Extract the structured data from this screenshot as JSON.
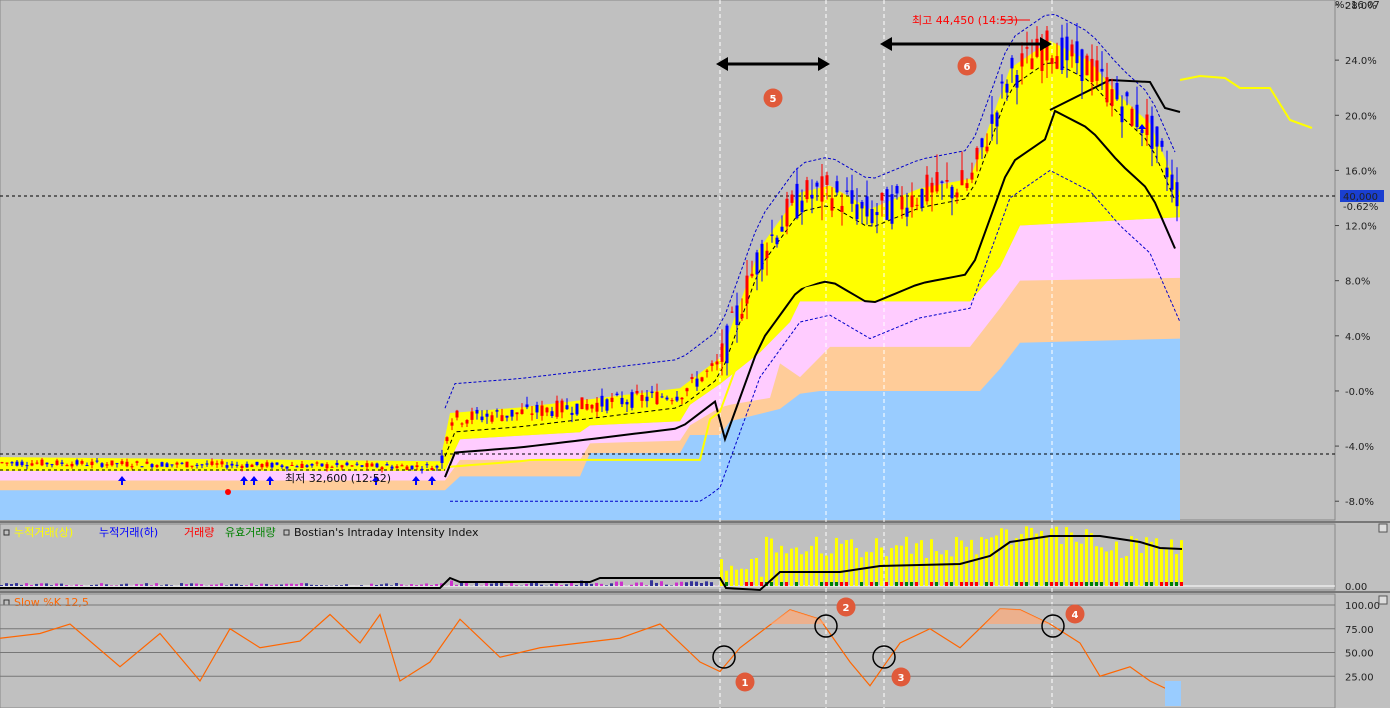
{
  "price_panel": {
    "y_axis_labels": [
      "28.0%",
      "24.0%",
      "20.0%",
      "16.0%",
      "12.0%",
      "8.0%",
      "4.0%",
      "-0.0%",
      "-4.0%",
      "-8.0%"
    ],
    "top_right_label": "%: 16.07",
    "current_price": "40,000",
    "current_change": "-0.62%",
    "high_label": "최고 44,450 (14:53)",
    "low_label": "최저 32,600 (12:52)"
  },
  "volume_panel": {
    "legend": [
      {
        "text": "누적거래(상)",
        "color": "#ffff00"
      },
      {
        "text": "누적거래(하)",
        "color": "#0000ff"
      },
      {
        "text": "거래량",
        "color": "#ff0000"
      },
      {
        "text": "유효거래량",
        "color": "#008000"
      },
      {
        "text": "Bostian's Intraday Intensity Index",
        "color": "#111111"
      }
    ],
    "y_axis_labels": [
      "0.00"
    ]
  },
  "stoch_panel": {
    "title": "Slow %K 12,5",
    "y_axis_labels": [
      "100.00",
      "75.00",
      "50.00",
      "25.00"
    ]
  },
  "annotations": [
    "1",
    "2",
    "3",
    "4",
    "5",
    "6"
  ],
  "colors": {
    "bg": "#c0c0c0",
    "band_yellow": "#ffff00",
    "band_pink": "#ffccff",
    "band_orange": "#ffcc99",
    "band_blue": "#99ccff",
    "candle_up": "#ff0000",
    "candle_down": "#0000ff",
    "stoch_line": "#ff6600",
    "badge": "#e05a3a"
  },
  "chart_data": [
    {
      "type": "line",
      "axis_unit": "%",
      "ylim": [
        -9.0,
        28.0
      ],
      "series": [
        {
          "values_x": [
            0,
            440,
            450,
            520,
            590,
            680,
            720,
            760,
            800,
            830,
            870,
            920,
            970,
            1010,
            1050,
            1090,
            1120,
            1150,
            1180
          ],
          "values": [
            -5.2,
            -5.5,
            -2.0,
            -1.6,
            -1.0,
            -0.2,
            2.0,
            10.0,
            14.0,
            14.5,
            12.8,
            14.3,
            15.0,
            23.0,
            25.0,
            23.5,
            21.0,
            19.0,
            14.0
          ]
        }
      ]
    },
    {
      "type": "line",
      "title": "Slow %K 12,5",
      "ylim": [
        0,
        100
      ],
      "series": [
        {
          "values_x": [
            0,
            40,
            70,
            120,
            160,
            200,
            230,
            260,
            300,
            330,
            360,
            380,
            400,
            430,
            460,
            500,
            540,
            580,
            620,
            660,
            700,
            720,
            740,
            790,
            820,
            850,
            870,
            900,
            930,
            960,
            1000,
            1020,
            1050,
            1080,
            1100,
            1130,
            1150,
            1180
          ],
          "values": [
            65,
            70,
            80,
            35,
            70,
            20,
            75,
            55,
            62,
            90,
            60,
            90,
            20,
            40,
            85,
            45,
            55,
            60,
            65,
            80,
            40,
            30,
            55,
            95,
            85,
            40,
            15,
            60,
            75,
            55,
            96,
            95,
            80,
            60,
            25,
            35,
            20,
            5
          ]
        }
      ]
    }
  ]
}
